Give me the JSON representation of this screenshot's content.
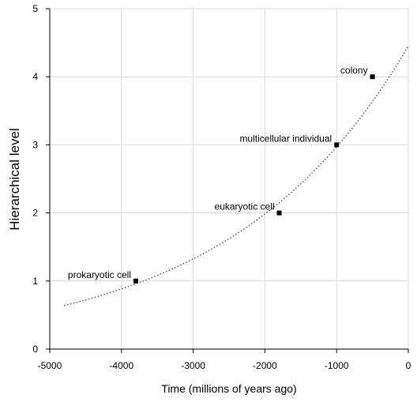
{
  "chart_data": {
    "type": "scatter",
    "title": "",
    "xlabel": "Time (millions of years ago)",
    "ylabel": "Hierarchical level",
    "xlim": [
      -5000,
      0
    ],
    "ylim": [
      0,
      5
    ],
    "x_ticks": [
      "-5000",
      "-4000",
      "-3000",
      "-2000",
      "-1000",
      "0"
    ],
    "y_ticks": [
      "0",
      "1",
      "2",
      "3",
      "4",
      "5"
    ],
    "grid": true,
    "legend": "none",
    "points": [
      {
        "label": "prokaryotic cell",
        "x": -3800,
        "y": 1
      },
      {
        "label": "eukaryotic cell",
        "x": -1800,
        "y": 2
      },
      {
        "label": "multicellular individual",
        "x": -1000,
        "y": 3
      },
      {
        "label": "colony",
        "x": -500,
        "y": 4
      }
    ],
    "trendline": {
      "type": "exponential",
      "style": "dotted",
      "x_range": [
        -4800,
        0
      ],
      "y_start": 0.64,
      "y_end": 4.45
    },
    "colors": {
      "marker": "#000000",
      "grid": "#d9d9d9",
      "axis": "#000000",
      "trendline": "#595959"
    }
  }
}
